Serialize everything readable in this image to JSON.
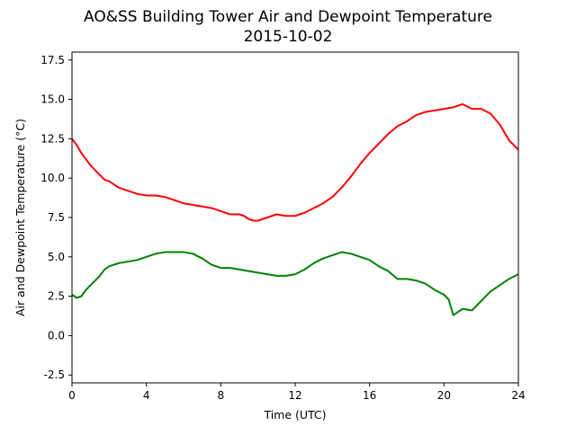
{
  "chart_data": {
    "type": "line",
    "title": "AO&SS Building Tower Air and Dewpoint Temperature",
    "subtitle": "2015-10-02",
    "xlabel": "Time (UTC)",
    "ylabel": "Air and Dewpoint Temperature (°C)",
    "xlim": [
      0,
      24
    ],
    "ylim": [
      -3.0,
      18.0
    ],
    "x_ticks": [
      0,
      4,
      8,
      12,
      16,
      20,
      24
    ],
    "y_ticks": [
      -2.5,
      0.0,
      2.5,
      5.0,
      7.5,
      10.0,
      12.5,
      15.0,
      17.5
    ],
    "grid": false,
    "series": [
      {
        "color": "#ff0000",
        "x": [
          0,
          0.25,
          0.5,
          0.75,
          1.0,
          1.25,
          1.5,
          1.75,
          2.0,
          2.25,
          2.5,
          3.0,
          3.5,
          4.0,
          4.5,
          5.0,
          5.5,
          6.0,
          6.5,
          7.0,
          7.5,
          8.0,
          8.5,
          9.0,
          9.25,
          9.5,
          9.75,
          10.0,
          10.5,
          11.0,
          11.5,
          12.0,
          12.5,
          13.0,
          13.5,
          14.0,
          14.5,
          15.0,
          15.5,
          16.0,
          16.5,
          17.0,
          17.5,
          18.0,
          18.5,
          19.0,
          19.5,
          20.0,
          20.5,
          21.0,
          21.5,
          22.0,
          22.5,
          23.0,
          23.5,
          24.0
        ],
        "y": [
          12.5,
          12.1,
          11.6,
          11.2,
          10.8,
          10.5,
          10.2,
          9.9,
          9.8,
          9.6,
          9.4,
          9.2,
          9.0,
          8.9,
          8.9,
          8.8,
          8.6,
          8.4,
          8.3,
          8.2,
          8.1,
          7.9,
          7.7,
          7.7,
          7.6,
          7.4,
          7.3,
          7.3,
          7.5,
          7.7,
          7.6,
          7.6,
          7.8,
          8.1,
          8.4,
          8.8,
          9.4,
          10.1,
          10.9,
          11.6,
          12.2,
          12.8,
          13.3,
          13.6,
          14.0,
          14.2,
          14.3,
          14.4,
          14.5,
          14.7,
          14.4,
          14.4,
          14.1,
          13.4,
          12.4,
          11.8
        ]
      },
      {
        "color": "#008000",
        "x": [
          0,
          0.25,
          0.5,
          0.75,
          1.0,
          1.25,
          1.5,
          1.75,
          2.0,
          2.5,
          3.0,
          3.5,
          4.0,
          4.5,
          5.0,
          5.5,
          6.0,
          6.5,
          7.0,
          7.5,
          8.0,
          8.5,
          9.0,
          9.5,
          10.0,
          10.5,
          11.0,
          11.5,
          12.0,
          12.5,
          13.0,
          13.5,
          14.0,
          14.5,
          15.0,
          15.5,
          16.0,
          16.5,
          17.0,
          17.5,
          18.0,
          18.5,
          19.0,
          19.5,
          20.0,
          20.25,
          20.5,
          20.75,
          21.0,
          21.5,
          22.0,
          22.5,
          23.0,
          23.5,
          24.0
        ],
        "y": [
          2.6,
          2.4,
          2.5,
          2.9,
          3.2,
          3.5,
          3.8,
          4.2,
          4.4,
          4.6,
          4.7,
          4.8,
          5.0,
          5.2,
          5.3,
          5.3,
          5.3,
          5.2,
          4.9,
          4.5,
          4.3,
          4.3,
          4.2,
          4.1,
          4.0,
          3.9,
          3.8,
          3.8,
          3.9,
          4.2,
          4.6,
          4.9,
          5.1,
          5.3,
          5.2,
          5.0,
          4.8,
          4.4,
          4.1,
          3.6,
          3.6,
          3.5,
          3.3,
          2.9,
          2.6,
          2.3,
          1.3,
          1.5,
          1.7,
          1.6,
          2.2,
          2.8,
          3.2,
          3.6,
          3.9
        ]
      }
    ]
  }
}
